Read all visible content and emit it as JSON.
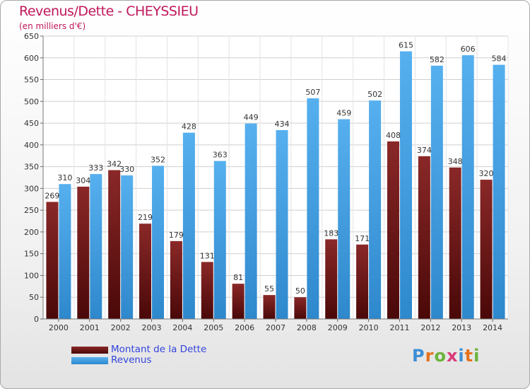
{
  "title": "Revenus/Dette - CHEYSSIEU",
  "subtitle": "(en milliers d'€)",
  "logo": "Proxiti",
  "colors": {
    "title": "#c0185c",
    "debt": "#7a2020",
    "debt_dark": "#4d0f0f",
    "revenue": "#4aa6e8",
    "revenue_dark": "#2f86cc",
    "legend_text": "#3344dd"
  },
  "legend": [
    {
      "label": "Montant de la Dette",
      "color": "#6e1818"
    },
    {
      "label": "Revenus",
      "color": "#4aa6e8"
    }
  ],
  "chart_data": {
    "type": "bar",
    "title": "Revenus/Dette - CHEYSSIEU",
    "subtitle": "(en milliers d'€)",
    "categories": [
      "2000",
      "2001",
      "2002",
      "2003",
      "2004",
      "2005",
      "2006",
      "2007",
      "2008",
      "2009",
      "2010",
      "2011",
      "2012",
      "2013",
      "2014"
    ],
    "series": [
      {
        "name": "Montant de la Dette",
        "values": [
          269,
          304,
          342,
          219,
          179,
          131,
          81,
          55,
          50,
          183,
          171,
          408,
          374,
          348,
          320
        ]
      },
      {
        "name": "Revenus",
        "values": [
          310,
          333,
          330,
          352,
          428,
          363,
          449,
          434,
          507,
          459,
          502,
          615,
          582,
          606,
          584
        ]
      }
    ],
    "ylim": [
      0,
      650
    ],
    "yticks": [
      0,
      50,
      100,
      150,
      200,
      250,
      300,
      350,
      400,
      450,
      500,
      550,
      600,
      650
    ],
    "grid": true,
    "legend_position": "bottom-left"
  }
}
